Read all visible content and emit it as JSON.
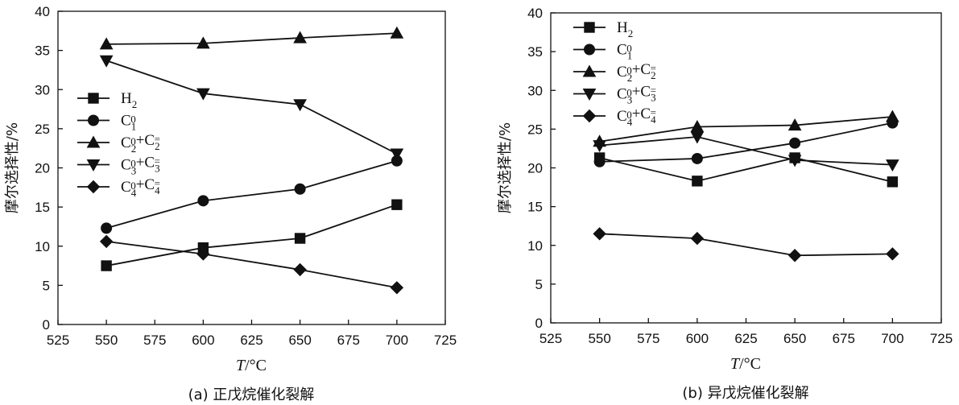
{
  "chart_data": [
    {
      "type": "line",
      "xlabel_italic": "T",
      "xlabel_unit": "/°C",
      "ylabel": "摩尔选择性/%",
      "caption": "(a) 正戊烷催化裂解",
      "xlim": [
        525,
        725
      ],
      "ylim": [
        0,
        40
      ],
      "xticks": [
        "525",
        "550",
        "575",
        "600",
        "625",
        "650",
        "675",
        "700",
        "725"
      ],
      "yticks": [
        "0",
        "5",
        "10",
        "15",
        "20",
        "25",
        "30",
        "35",
        "40"
      ],
      "legend_placement": "left-middle",
      "x": [
        550,
        600,
        650,
        700
      ],
      "series": [
        {
          "name": "H2",
          "marker": "square",
          "values": [
            7.5,
            9.8,
            11.0,
            15.3
          ]
        },
        {
          "name": "C1^0",
          "marker": "circle",
          "values": [
            12.3,
            15.8,
            17.3,
            20.9
          ]
        },
        {
          "name": "C2^0+C2^=",
          "marker": "triangle-up",
          "values": [
            35.8,
            35.9,
            36.6,
            37.2
          ]
        },
        {
          "name": "C3^0+C3^=",
          "marker": "triangle-down",
          "values": [
            33.7,
            29.5,
            28.1,
            21.8
          ]
        },
        {
          "name": "C4^0+C4^=",
          "marker": "diamond",
          "values": [
            10.6,
            9.0,
            7.0,
            4.7
          ]
        }
      ]
    },
    {
      "type": "line",
      "xlabel_italic": "T",
      "xlabel_unit": "/°C",
      "ylabel": "摩尔选择性/%",
      "caption": "(b) 异戊烷催化裂解",
      "xlim": [
        525,
        725
      ],
      "ylim": [
        0,
        40
      ],
      "xticks": [
        "525",
        "550",
        "575",
        "600",
        "625",
        "650",
        "675",
        "700",
        "725"
      ],
      "yticks": [
        "0",
        "5",
        "10",
        "15",
        "20",
        "25",
        "30",
        "35",
        "40"
      ],
      "legend_placement": "top-left",
      "x": [
        550,
        600,
        650,
        700
      ],
      "series": [
        {
          "name": "H2",
          "marker": "square",
          "values": [
            21.3,
            18.3,
            21.3,
            18.2
          ]
        },
        {
          "name": "C1^0",
          "marker": "circle",
          "values": [
            20.8,
            21.2,
            23.2,
            25.8
          ]
        },
        {
          "name": "C2^0+C2^=",
          "marker": "triangle-up",
          "values": [
            23.4,
            25.3,
            25.5,
            26.6
          ]
        },
        {
          "name": "C3^0+C3^=",
          "marker": "triangle-down",
          "values": [
            22.9,
            24.0,
            21.0,
            20.4
          ]
        },
        {
          "name": "C4^0+C4^=",
          "marker": "diamond",
          "values": [
            11.5,
            10.9,
            8.7,
            8.9
          ]
        }
      ]
    }
  ]
}
